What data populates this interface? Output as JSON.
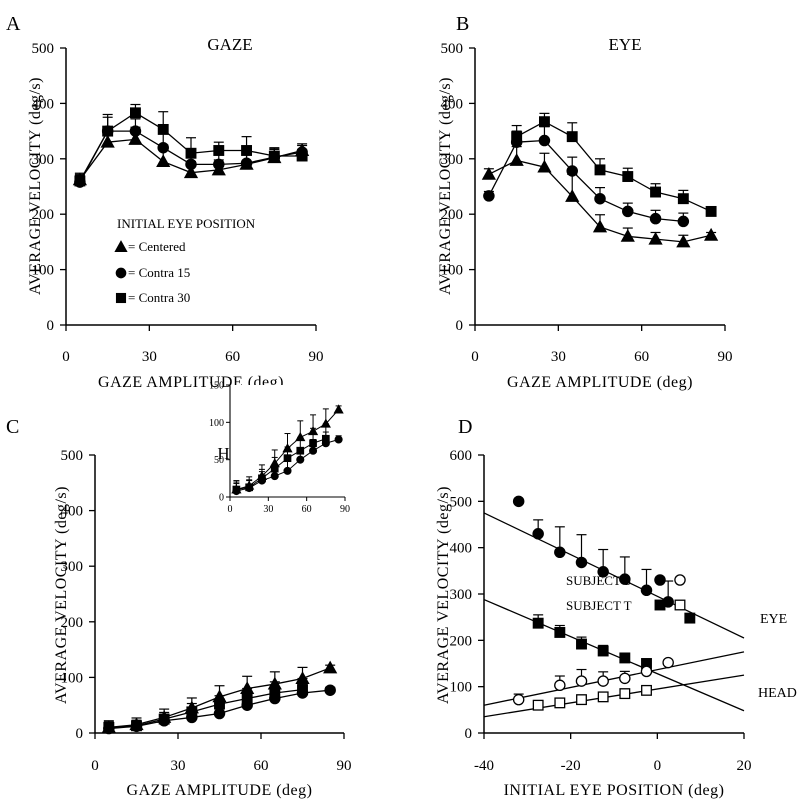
{
  "chart_data": [
    {
      "panel_label": "A",
      "type": "line",
      "title": "GAZE",
      "xlabel": "GAZE AMPLITUDE (deg)",
      "ylabel": "AVERAGE VELOCITY (deg/s)",
      "xlim": [
        0,
        90
      ],
      "ylim": [
        0,
        500
      ],
      "xticks": [
        "0",
        "30",
        "60",
        "90"
      ],
      "yticks": [
        "0",
        "100",
        "200",
        "300",
        "400",
        "500"
      ],
      "legend_title": "INITIAL EYE POSITION",
      "series": [
        {
          "name": "= Centered",
          "marker": "triangle",
          "x": [
            5,
            15,
            25,
            35,
            45,
            55,
            65,
            75,
            85
          ],
          "y": [
            262,
            330,
            335,
            295,
            275,
            280,
            290,
            302,
            315
          ],
          "err": [
            12,
            25,
            22,
            30,
            20,
            18,
            18,
            15,
            12
          ]
        },
        {
          "name": "= Contra 15",
          "marker": "circle",
          "x": [
            5,
            15,
            25,
            35,
            45,
            55,
            65,
            75,
            85
          ],
          "y": [
            258,
            350,
            350,
            320,
            290,
            290,
            292,
            303,
            312
          ],
          "err": [
            12,
            25,
            22,
            25,
            20,
            18,
            18,
            15,
            12
          ]
        },
        {
          "name": "= Contra 30",
          "marker": "square",
          "x": [
            5,
            15,
            25,
            35,
            45,
            55,
            65,
            75,
            85
          ],
          "y": [
            260,
            350,
            383,
            353,
            310,
            315,
            315,
            305,
            305
          ],
          "err": [
            12,
            30,
            15,
            32,
            28,
            15,
            25,
            15,
            12
          ]
        }
      ]
    },
    {
      "panel_label": "B",
      "type": "line",
      "title": "EYE",
      "xlabel": "GAZE AMPLITUDE (deg)",
      "ylabel": "AVERAGE VELOCITY (deg/s)",
      "xlim": [
        0,
        90
      ],
      "ylim": [
        0,
        500
      ],
      "xticks": [
        "0",
        "30",
        "60",
        "90"
      ],
      "yticks": [
        "0",
        "100",
        "200",
        "300",
        "400",
        "500"
      ],
      "series": [
        {
          "name": "Centered",
          "marker": "triangle",
          "x": [
            5,
            15,
            25,
            35,
            45,
            55,
            65,
            75,
            85
          ],
          "y": [
            272,
            297,
            285,
            232,
            177,
            160,
            155,
            150,
            162
          ],
          "err": [
            10,
            25,
            25,
            40,
            22,
            15,
            12,
            12,
            5
          ]
        },
        {
          "name": "Contra 15",
          "marker": "circle",
          "x": [
            5,
            15,
            25,
            35,
            45,
            55,
            65,
            75,
            85
          ],
          "y": [
            233,
            330,
            333,
            278,
            228,
            205,
            192,
            187,
            0
          ],
          "err": [
            8,
            20,
            25,
            25,
            20,
            15,
            15,
            15,
            0
          ]
        },
        {
          "name": "Contra 30",
          "marker": "square",
          "x": [
            5,
            15,
            25,
            35,
            45,
            55,
            65,
            75,
            85
          ],
          "y": [
            0,
            340,
            367,
            340,
            280,
            268,
            240,
            228,
            205
          ],
          "err": [
            0,
            20,
            15,
            25,
            20,
            15,
            15,
            15,
            8
          ]
        }
      ]
    },
    {
      "panel_label": "C",
      "type": "line",
      "title": "HEAD",
      "xlabel": "GAZE AMPLITUDE (deg)",
      "ylabel": "AVERAGE VELOCITY (deg/s)",
      "xlim": [
        0,
        90
      ],
      "ylim": [
        0,
        500
      ],
      "xticks": [
        "0",
        "30",
        "60",
        "90"
      ],
      "yticks": [
        "0",
        "100",
        "200",
        "300",
        "400",
        "500"
      ],
      "series": [
        {
          "name": "Centered",
          "marker": "triangle",
          "x": [
            5,
            15,
            25,
            35,
            45,
            55,
            65,
            75,
            85
          ],
          "y": [
            10,
            15,
            28,
            45,
            65,
            80,
            88,
            98,
            117
          ],
          "err": [
            12,
            12,
            15,
            18,
            20,
            22,
            22,
            20,
            5
          ]
        },
        {
          "name": "Contra 15",
          "marker": "circle",
          "x": [
            5,
            15,
            25,
            35,
            45,
            55,
            65,
            75,
            85
          ],
          "y": [
            8,
            12,
            22,
            28,
            35,
            50,
            62,
            72,
            77
          ],
          "err": [
            10,
            10,
            12,
            12,
            15,
            15,
            15,
            15,
            5
          ]
        },
        {
          "name": "Contra 30",
          "marker": "square",
          "x": [
            5,
            15,
            25,
            35,
            45,
            55,
            65,
            75
          ],
          "y": [
            10,
            13,
            25,
            38,
            52,
            62,
            72,
            78
          ],
          "err": [
            10,
            10,
            12,
            15,
            15,
            18,
            20,
            20
          ]
        }
      ],
      "inset": {
        "xlim": [
          0,
          90
        ],
        "ylim": [
          0,
          150
        ],
        "xticks": [
          "0",
          "30",
          "60",
          "90"
        ],
        "yticks": [
          "0",
          "50",
          "100",
          "150"
        ]
      }
    },
    {
      "panel_label": "D",
      "type": "scatter",
      "xlabel": "INITIAL EYE POSITION (deg)",
      "ylabel": "AVERAGE VELOCITY (deg/s)",
      "xlim": [
        -40,
        20
      ],
      "ylim": [
        0,
        600
      ],
      "xticks": [
        "-40",
        "-20",
        "0",
        "20"
      ],
      "yticks": [
        "0",
        "100",
        "200",
        "300",
        "400",
        "500",
        "600"
      ],
      "legend": [
        {
          "label": "SUBJECT S",
          "markers": [
            "filled-circle",
            "open-circle"
          ]
        },
        {
          "label": "SUBJECT T",
          "markers": [
            "filled-square",
            "open-square"
          ]
        }
      ],
      "annotations": [
        "EYE",
        "HEAD"
      ],
      "series": [
        {
          "name": "Subject S eye",
          "marker": "filled-circle",
          "x": [
            -32,
            -27.5,
            -22.5,
            -17.5,
            -12.5,
            -7.5,
            -2.5,
            2.5
          ],
          "y": [
            500,
            430,
            390,
            368,
            348,
            332,
            308,
            283
          ],
          "err": [
            0,
            30,
            55,
            60,
            48,
            48,
            45,
            45
          ]
        },
        {
          "name": "Subject T eye",
          "marker": "filled-square",
          "x": [
            -27.5,
            -22.5,
            -17.5,
            -12.5,
            -7.5,
            -2.5,
            7.5
          ],
          "y": [
            237,
            217,
            192,
            177,
            162,
            150,
            248
          ],
          "err": [
            18,
            15,
            15,
            12,
            10,
            10,
            5
          ]
        },
        {
          "name": "Subject S head",
          "marker": "open-circle",
          "x": [
            -32,
            -22.5,
            -17.5,
            -12.5,
            -7.5,
            -2.5,
            2.5
          ],
          "y": [
            72,
            103,
            112,
            112,
            118,
            133,
            152
          ],
          "err": [
            12,
            20,
            25,
            20,
            15,
            12,
            5
          ]
        },
        {
          "name": "Subject T head",
          "marker": "open-square",
          "x": [
            -27.5,
            -22.5,
            -17.5,
            -12.5,
            -7.5,
            -2.5
          ],
          "y": [
            60,
            65,
            72,
            78,
            85,
            92
          ],
          "err": [
            10,
            10,
            10,
            10,
            10,
            10
          ]
        }
      ],
      "fit_lines": [
        {
          "name": "S eye fit",
          "x": [
            -40,
            20
          ],
          "y": [
            475,
            205
          ]
        },
        {
          "name": "T eye fit",
          "x": [
            -40,
            20
          ],
          "y": [
            288,
            48
          ]
        },
        {
          "name": "S head fit",
          "x": [
            -40,
            20
          ],
          "y": [
            60,
            175
          ]
        },
        {
          "name": "T head fit",
          "x": [
            -40,
            20
          ],
          "y": [
            35,
            125
          ]
        }
      ]
    }
  ]
}
